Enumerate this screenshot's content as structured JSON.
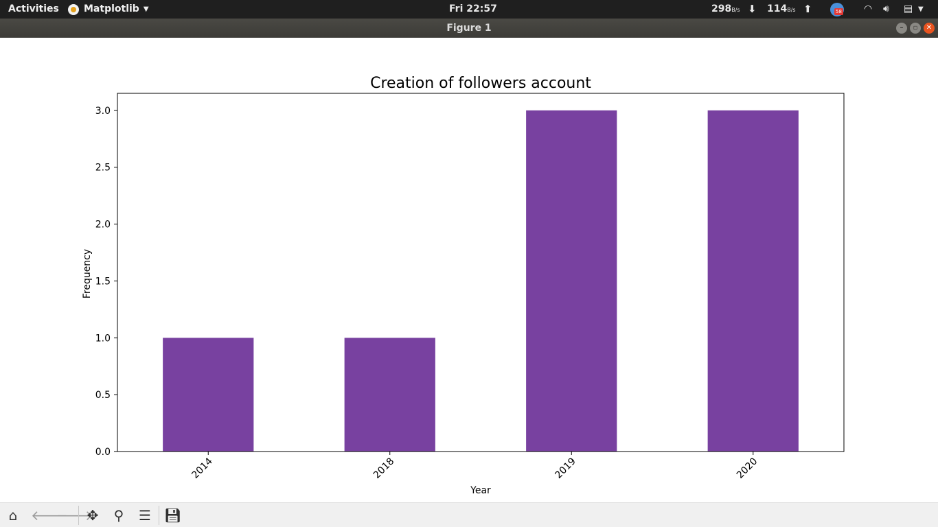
{
  "topbar": {
    "activities": "Activities",
    "app_name": "Matplotlib",
    "clock": "Fri 22:57",
    "net_down_value": "298",
    "net_down_unit": "B/s",
    "net_up_value": "114",
    "net_up_unit": "B/s",
    "notification_count": "58"
  },
  "window": {
    "title": "Figure 1"
  },
  "toolbar": {
    "tools": [
      "home-icon",
      "back-icon",
      "forward-icon",
      "pan-icon",
      "zoom-icon",
      "configure-subplots-icon",
      "save-icon"
    ]
  },
  "chart_data": {
    "type": "bar",
    "title": "Creation of followers account",
    "xlabel": "Year",
    "ylabel": "Frequency",
    "categories": [
      "2014",
      "2018",
      "2019",
      "2020"
    ],
    "values": [
      1,
      1,
      3,
      3
    ],
    "ylim": [
      0,
      3.15
    ],
    "yticks": [
      "0.0",
      "0.5",
      "1.0",
      "1.5",
      "2.0",
      "2.5",
      "3.0"
    ],
    "ytick_values": [
      0,
      0.5,
      1.0,
      1.5,
      2.0,
      2.5,
      3.0
    ],
    "bar_color": "#7841a0",
    "grid": false,
    "xtick_rotation": "45"
  }
}
